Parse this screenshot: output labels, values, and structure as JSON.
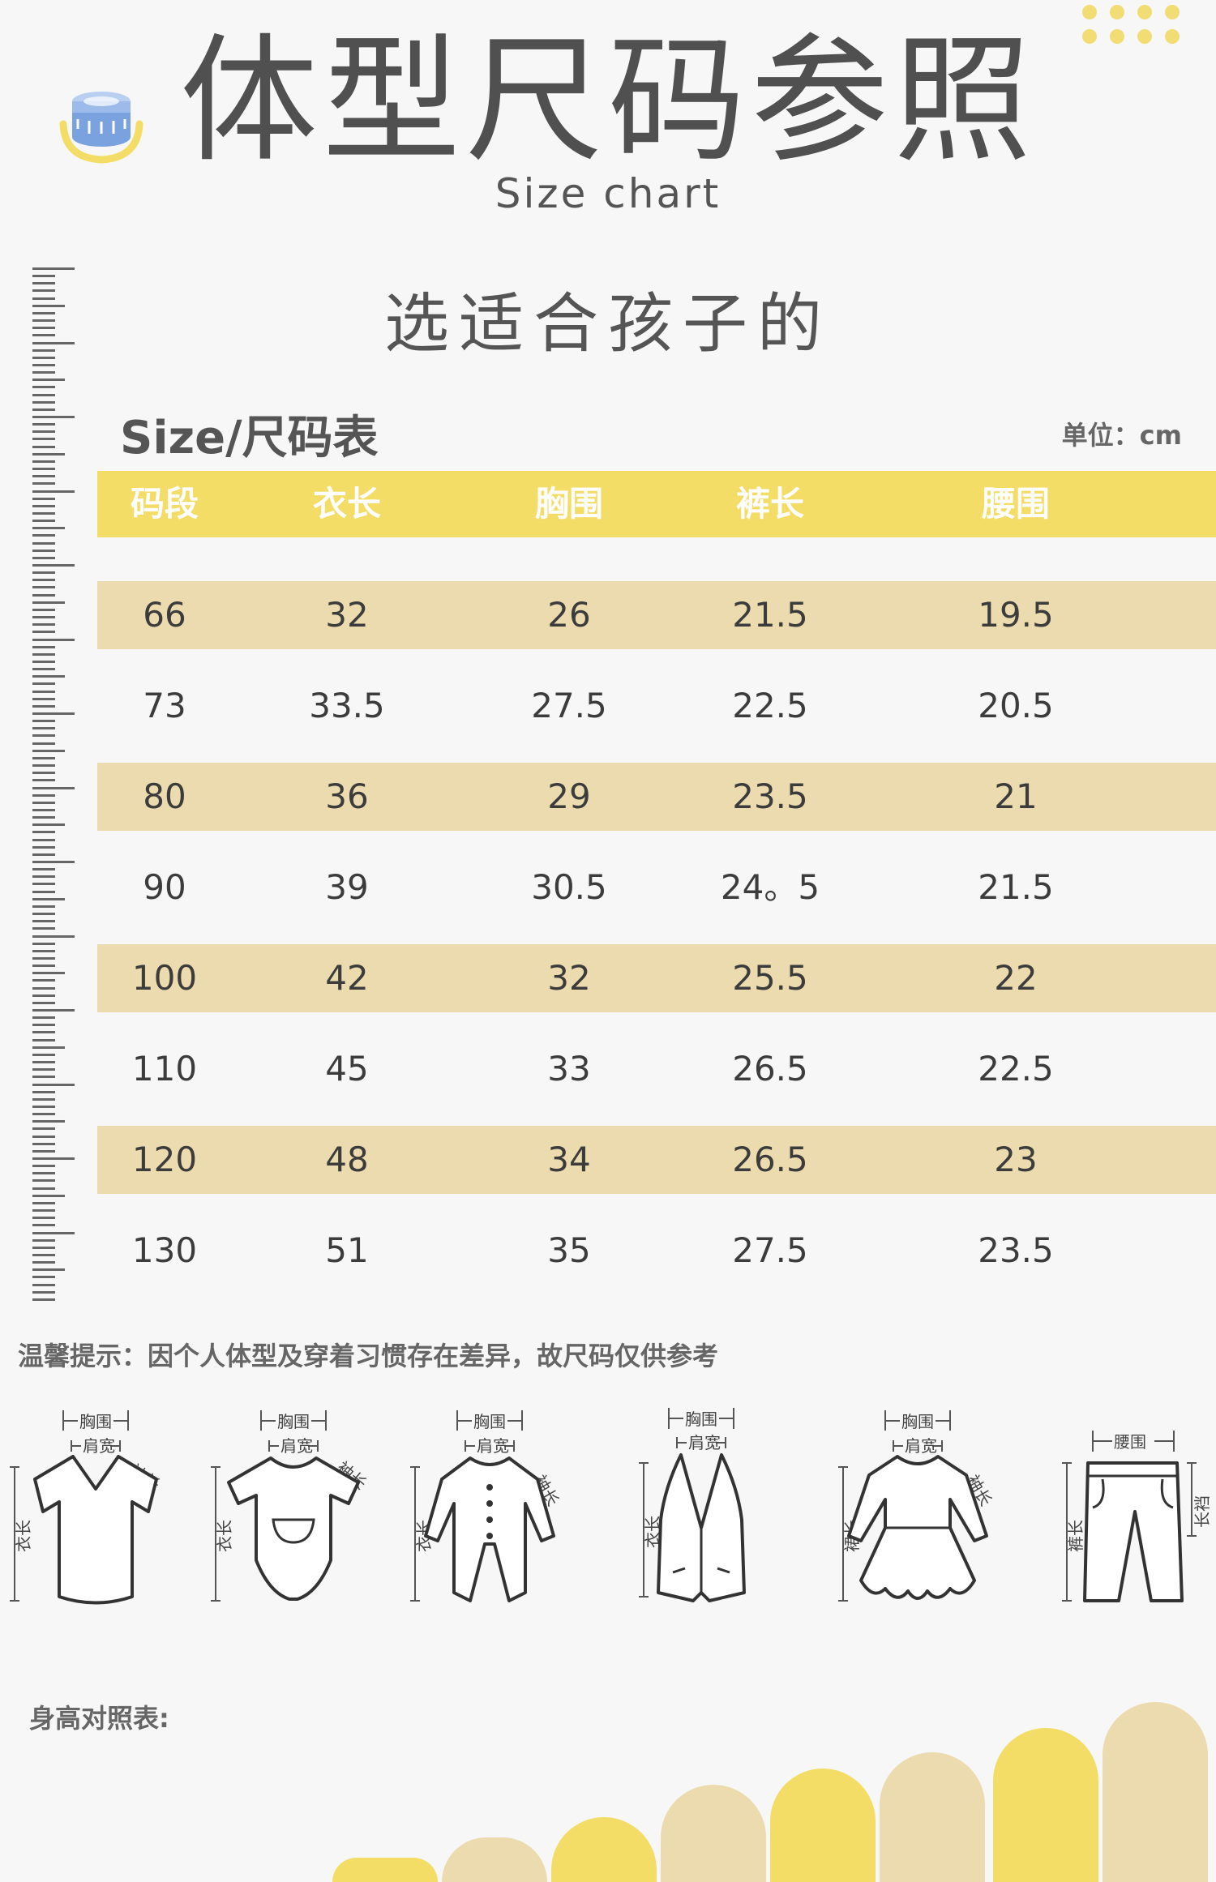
{
  "header": {
    "title": "体型尺码参照",
    "subtitle": "Size chart",
    "tagline": "选适合孩子的"
  },
  "table": {
    "title": "Size/尺码表",
    "unit": "单位：cm",
    "columns": [
      "码段",
      "衣长",
      "胸围",
      "裤长",
      "腰围"
    ],
    "rows": [
      [
        "66",
        "32",
        "26",
        "21.5",
        "19.5"
      ],
      [
        "73",
        "33.5",
        "27.5",
        "22.5",
        "20.5"
      ],
      [
        "80",
        "36",
        "29",
        "23.5",
        "21"
      ],
      [
        "90",
        "39",
        "30.5",
        "24。5",
        "21.5"
      ],
      [
        "100",
        "42",
        "32",
        "25.5",
        "22"
      ],
      [
        "110",
        "45",
        "33",
        "26.5",
        "22.5"
      ],
      [
        "120",
        "48",
        "34",
        "26.5",
        "23"
      ],
      [
        "130",
        "51",
        "35",
        "27.5",
        "23.5"
      ]
    ]
  },
  "note": "温馨提示：因个人体型及穿着习惯存在差异，故尺码仅供参考",
  "garments": [
    {
      "top": "胸围",
      "mid": "肩宽",
      "side": "衣长",
      "sleeve": "袖长"
    },
    {
      "top": "胸围",
      "mid": "肩宽",
      "side": "衣长",
      "sleeve": "袖长"
    },
    {
      "top": "胸围",
      "mid": "肩宽",
      "side": "衣长",
      "sleeve": "袖长"
    },
    {
      "top": "胸围",
      "mid": "肩宽",
      "side": "衣长"
    },
    {
      "top": "胸围",
      "mid": "肩宽",
      "side": "裙长",
      "sleeve": "袖长"
    },
    {
      "top": "腰围",
      "side": "裤长",
      "sleeve": "长裆"
    }
  ],
  "height_label": "身高对照表:",
  "colors": {
    "yellow": "#f3dd67",
    "beige": "#ecdbae",
    "text": "#4a4a4a"
  }
}
